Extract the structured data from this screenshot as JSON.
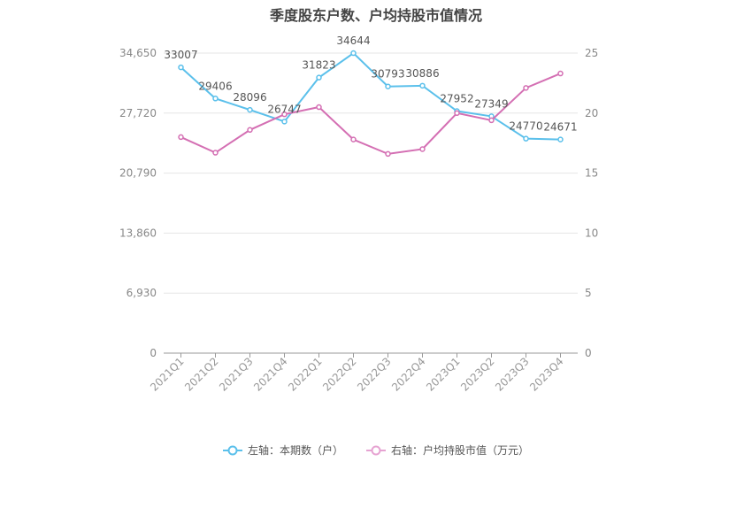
{
  "chart_data": {
    "type": "line",
    "title": "季度股东户数、户均持股市值情况",
    "categories": [
      "2021Q1",
      "2021Q2",
      "2021Q3",
      "2021Q4",
      "2022Q1",
      "2022Q2",
      "2022Q3",
      "2022Q4",
      "2023Q1",
      "2023Q2",
      "2023Q3",
      "2023Q4"
    ],
    "left_axis": {
      "min": 0,
      "max": 34650,
      "ticks": [
        "0",
        "6,930",
        "13,860",
        "20,790",
        "27,720",
        "34,650"
      ]
    },
    "right_axis": {
      "min": 0,
      "max": 25,
      "ticks": [
        "0",
        "5",
        "10",
        "15",
        "20",
        "25"
      ]
    },
    "series": [
      {
        "name": "左轴：本期数（户）",
        "axis": "left",
        "color": "#5bc0eb",
        "values": [
          33007,
          29406,
          28096,
          26747,
          31823,
          34644,
          30793,
          30886,
          27952,
          27349,
          24770,
          24671
        ],
        "labels": [
          "33007",
          "29406",
          "28096",
          "26747",
          "31823",
          "34644",
          "30793",
          "30886",
          "27952",
          "27349",
          "24770",
          "24671"
        ]
      },
      {
        "name": "右轴：户均持股市值（万元）",
        "axis": "right",
        "color": "#d46fb3",
        "values": [
          18.0,
          16.7,
          18.6,
          19.9,
          20.5,
          17.8,
          16.6,
          17.0,
          20.0,
          19.4,
          22.1,
          23.3
        ]
      }
    ],
    "grid": true,
    "legend_position": "bottom"
  }
}
